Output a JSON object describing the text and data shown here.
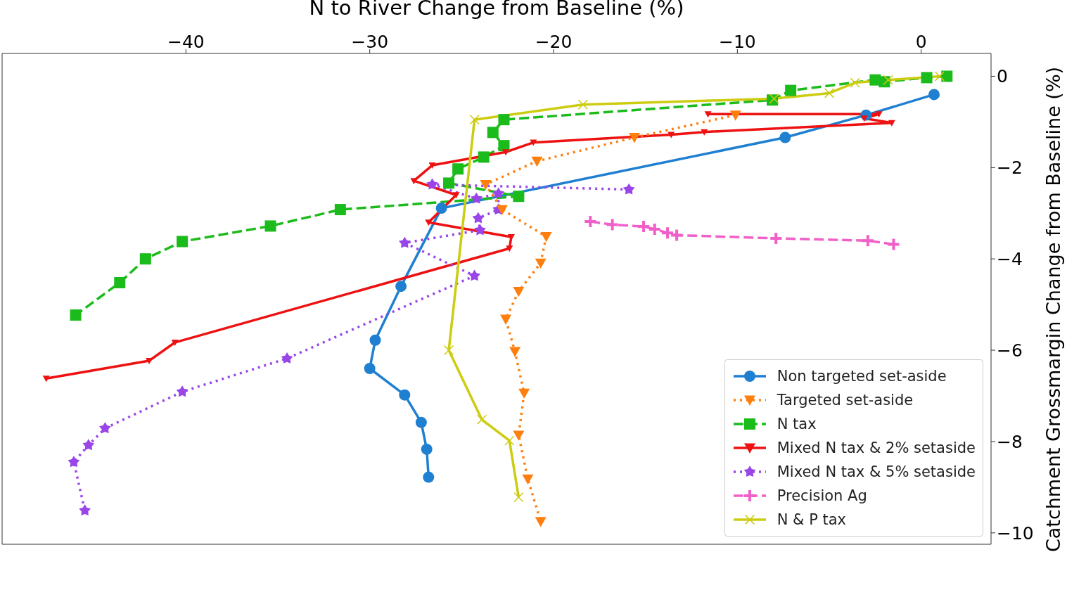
{
  "chart_data": {
    "type": "line",
    "xlabel": "N to River Change from Baseline (%)",
    "ylabel": "Catchment Grossmargin Change from Baseline (%)",
    "xlim": [
      -50,
      3.8
    ],
    "ylim": [
      -10.25,
      0.5
    ],
    "xticks": [
      {
        "value": -40,
        "label": "−40"
      },
      {
        "value": -30,
        "label": "−30"
      },
      {
        "value": -20,
        "label": "−20"
      },
      {
        "value": -10,
        "label": "−10"
      },
      0
    ],
    "yticks": [
      0,
      {
        "value": -2,
        "label": "−2"
      },
      {
        "value": -4,
        "label": "−4"
      },
      {
        "value": -6,
        "label": "−6"
      },
      {
        "value": -8,
        "label": "−8"
      },
      {
        "value": -10,
        "label": "−10"
      }
    ],
    "grid": false,
    "legend": "bottom right",
    "series": [
      {
        "name": "Non targeted set-aside",
        "color": "#1f7fd1",
        "marker": "circle",
        "line_style": "solid",
        "x": [
          0.7,
          -3.0,
          -7.4,
          -26.1,
          -28.3,
          -29.7,
          -30.0,
          -28.1,
          -27.2,
          -26.9,
          -26.8
        ],
        "values": [
          -0.4,
          -0.85,
          -1.34,
          -2.89,
          -4.6,
          -5.78,
          -6.4,
          -6.98,
          -7.58,
          -8.17,
          -8.78
        ]
      },
      {
        "name": "Targeted set-aside",
        "color": "#ff7f0e",
        "marker": "triangle_down",
        "line_style": "dotted",
        "x": [
          -10.1,
          -15.6,
          -20.9,
          -23.7,
          -22.8,
          -20.4,
          -20.7,
          -21.9,
          -22.6,
          -22.1,
          -21.6,
          -21.9,
          -21.4,
          -20.7
        ],
        "values": [
          -0.85,
          -1.34,
          -1.86,
          -2.37,
          -2.92,
          -3.51,
          -4.09,
          -4.71,
          -5.32,
          -6.03,
          -6.94,
          -7.86,
          -8.82,
          -9.75
        ]
      },
      {
        "name": "N tax",
        "color": "#1cbb1c",
        "marker": "square",
        "line_style": "dashed",
        "x": [
          1.4,
          0.3,
          -2.0,
          -2.5,
          -7.1,
          -8.1,
          -22.7,
          -23.3,
          -22.7,
          -23.8,
          -25.2,
          -25.7,
          -21.9,
          -31.6,
          -35.4,
          -40.2,
          -42.2,
          -43.6,
          -46.0
        ],
        "values": [
          0,
          -0.03,
          -0.12,
          -0.08,
          -0.31,
          -0.52,
          -0.95,
          -1.23,
          -1.52,
          -1.77,
          -2.03,
          -2.34,
          -2.63,
          -2.92,
          -3.28,
          -3.62,
          -4.0,
          -4.52,
          -5.23
        ]
      },
      {
        "name": "Mixed N tax & 2% setaside",
        "color": "#ee1111",
        "marker": "triangle_down",
        "line_style": "solid",
        "x": [
          -11.6,
          -2.3,
          -3.1,
          -1.6,
          -11.8,
          -13.6,
          -21.1,
          -22.6,
          -26.6,
          -27.6,
          -25.3,
          -26.8,
          -22.3,
          -22.4,
          -40.6,
          -42.0,
          -47.6
        ],
        "values": [
          -0.83,
          -0.83,
          -0.92,
          -1.02,
          -1.22,
          -1.28,
          -1.45,
          -1.66,
          -1.95,
          -2.29,
          -2.6,
          -3.2,
          -3.52,
          -3.77,
          -5.83,
          -6.23,
          -6.62
        ]
      },
      {
        "name": "Mixed N tax & 5% setaside",
        "color": "#9945e8",
        "marker": "star",
        "line_style": "dotted",
        "x": [
          -15.9,
          -26.6,
          -24.2,
          -23.0,
          -23.0,
          -24.1,
          -24.0,
          -28.1,
          -24.3,
          -34.5,
          -40.2,
          -44.4,
          -45.3,
          -46.1,
          -45.5
        ],
        "values": [
          -2.48,
          -2.37,
          -2.68,
          -2.57,
          -2.92,
          -3.11,
          -3.37,
          -3.65,
          -4.37,
          -6.18,
          -6.91,
          -7.71,
          -8.08,
          -8.45,
          -9.51
        ]
      },
      {
        "name": "Precision Ag",
        "color": "#f060c8",
        "marker": "plus",
        "line_style": "dashed",
        "x": [
          -18.0,
          -16.8,
          -15.1,
          -14.5,
          -13.8,
          -13.3,
          -7.9,
          -2.9,
          -1.5
        ],
        "values": [
          -3.18,
          -3.25,
          -3.29,
          -3.35,
          -3.43,
          -3.48,
          -3.55,
          -3.6,
          -3.68
        ]
      },
      {
        "name": "N & P tax",
        "color": "#cccc11",
        "marker": "x",
        "line_style": "solid",
        "x": [
          1.0,
          -1.8,
          -3.6,
          -5.0,
          -8.0,
          -18.4,
          -24.3,
          -25.7,
          -23.9,
          -22.4,
          -21.9
        ],
        "values": [
          0,
          -0.08,
          -0.14,
          -0.37,
          -0.49,
          -0.62,
          -0.95,
          -6.0,
          -7.52,
          -7.98,
          -9.22
        ]
      }
    ]
  }
}
